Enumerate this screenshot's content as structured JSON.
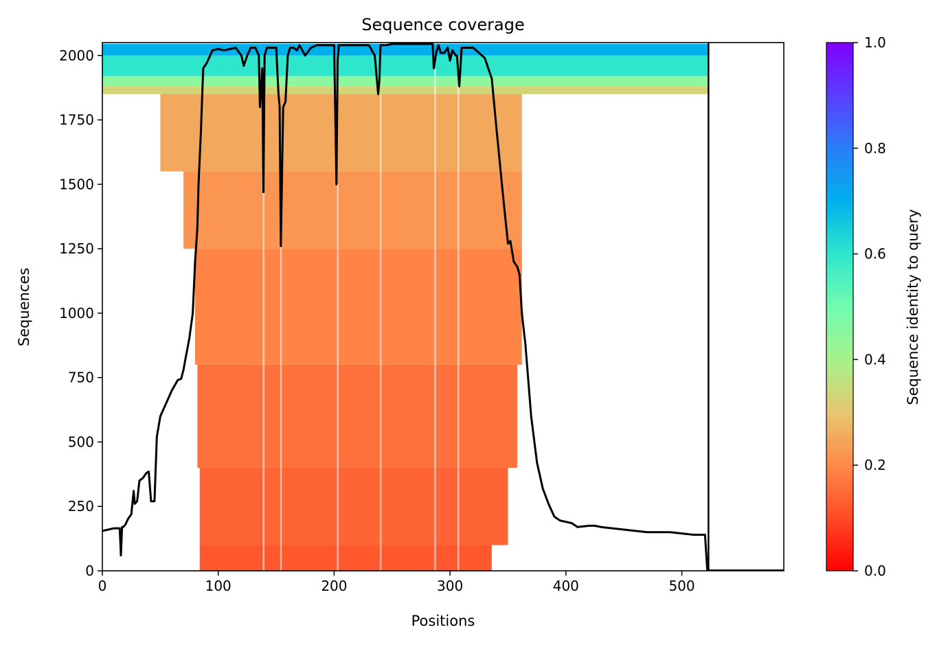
{
  "chart_data": {
    "type": "heatmap",
    "title": "Sequence coverage",
    "xlabel": "Positions",
    "ylabel": "Sequences",
    "xlim": [
      0,
      588
    ],
    "ylim": [
      0,
      2050
    ],
    "query_length": 523,
    "x_ticks": [
      0,
      100,
      200,
      300,
      400,
      500
    ],
    "x_tick_labels": [
      "0",
      "100",
      "200",
      "300",
      "400",
      "500"
    ],
    "y_ticks": [
      0,
      250,
      500,
      750,
      1000,
      1250,
      1500,
      1750,
      2000
    ],
    "y_tick_labels": [
      "0",
      "250",
      "500",
      "750",
      "1000",
      "1250",
      "1500",
      "1750",
      "2000"
    ],
    "colorbar": {
      "label": "Sequence identity to query",
      "range": [
        0.0,
        1.0
      ],
      "ticks": [
        0.0,
        0.2,
        0.4,
        0.6,
        0.8,
        1.0
      ],
      "tick_labels": [
        "0.0",
        "0.2",
        "0.4",
        "0.6",
        "0.8",
        "1.0"
      ],
      "colormap": "rainbow_r"
    },
    "coverage_bands": [
      {
        "y_from": 0,
        "y_to": 100,
        "x_from": 84,
        "x_to": 336,
        "identity": 0.12
      },
      {
        "y_from": 100,
        "y_to": 400,
        "x_from": 84,
        "x_to": 350,
        "identity": 0.14
      },
      {
        "y_from": 400,
        "y_to": 800,
        "x_from": 82,
        "x_to": 358,
        "identity": 0.16
      },
      {
        "y_from": 800,
        "y_to": 1250,
        "x_from": 80,
        "x_to": 362,
        "identity": 0.19
      },
      {
        "y_from": 1250,
        "y_to": 1550,
        "x_from": 70,
        "x_to": 362,
        "identity": 0.22
      },
      {
        "y_from": 1550,
        "y_to": 1850,
        "x_from": 50,
        "x_to": 362,
        "identity": 0.25
      },
      {
        "y_from": 1850,
        "y_to": 1880,
        "x_from": 0,
        "x_to": 523,
        "identity": 0.33
      },
      {
        "y_from": 1880,
        "y_to": 1920,
        "x_from": 0,
        "x_to": 523,
        "identity": 0.45
      },
      {
        "y_from": 1920,
        "y_to": 2000,
        "x_from": 0,
        "x_to": 523,
        "identity": 0.6
      },
      {
        "y_from": 2000,
        "y_to": 2045,
        "x_from": 0,
        "x_to": 523,
        "identity": 0.7
      }
    ],
    "coverage_line": {
      "x": [
        0,
        10,
        15,
        16,
        17,
        18,
        20,
        22,
        25,
        27,
        28,
        30,
        32,
        35,
        38,
        40,
        42,
        45,
        47,
        50,
        55,
        60,
        65,
        68,
        70,
        72,
        75,
        78,
        80,
        82,
        83,
        85,
        87,
        90,
        95,
        100,
        105,
        115,
        120,
        122,
        125,
        128,
        132,
        135,
        136,
        138,
        139,
        140,
        142,
        145,
        150,
        152,
        153,
        154,
        156,
        158,
        160,
        162,
        165,
        168,
        170,
        175,
        180,
        185,
        190,
        195,
        200,
        202,
        203,
        204,
        206,
        210,
        215,
        220,
        225,
        230,
        235,
        238,
        239,
        240,
        245,
        250,
        255,
        260,
        265,
        270,
        275,
        280,
        283,
        285,
        286,
        288,
        290,
        292,
        295,
        298,
        300,
        302,
        305,
        306,
        308,
        310,
        315,
        320,
        330,
        336,
        340,
        345,
        347,
        350,
        352,
        355,
        358,
        360,
        362,
        365,
        370,
        375,
        380,
        385,
        390,
        395,
        400,
        405,
        410,
        420,
        425,
        430,
        450,
        470,
        480,
        490,
        500,
        510,
        520,
        522,
        523
      ],
      "y": [
        155,
        165,
        165,
        60,
        170,
        170,
        180,
        200,
        220,
        310,
        260,
        270,
        350,
        360,
        380,
        385,
        270,
        270,
        520,
        600,
        650,
        700,
        740,
        745,
        780,
        830,
        900,
        1000,
        1200,
        1330,
        1500,
        1700,
        1950,
        1970,
        2020,
        2025,
        2020,
        2030,
        2000,
        1960,
        2000,
        2030,
        2030,
        2000,
        1800,
        1950,
        1470,
        2000,
        2030,
        2030,
        2030,
        1850,
        1800,
        1260,
        1800,
        1820,
        2000,
        2030,
        2030,
        2020,
        2040,
        2000,
        2030,
        2040,
        2040,
        2040,
        2040,
        1500,
        1980,
        2040,
        2040,
        2040,
        2040,
        2040,
        2040,
        2040,
        2000,
        1850,
        1900,
        2040,
        2040,
        2045,
        2045,
        2045,
        2045,
        2045,
        2045,
        2045,
        2045,
        2045,
        1950,
        2010,
        2040,
        2010,
        2010,
        2030,
        1980,
        2020,
        2000,
        2000,
        1880,
        2030,
        2030,
        2030,
        1990,
        1910,
        1720,
        1490,
        1400,
        1270,
        1280,
        1200,
        1180,
        1150,
        1000,
        880,
        600,
        420,
        320,
        260,
        210,
        195,
        190,
        185,
        170,
        175,
        175,
        170,
        160,
        150,
        150,
        150,
        145,
        140,
        140,
        0,
        0
      ]
    }
  }
}
